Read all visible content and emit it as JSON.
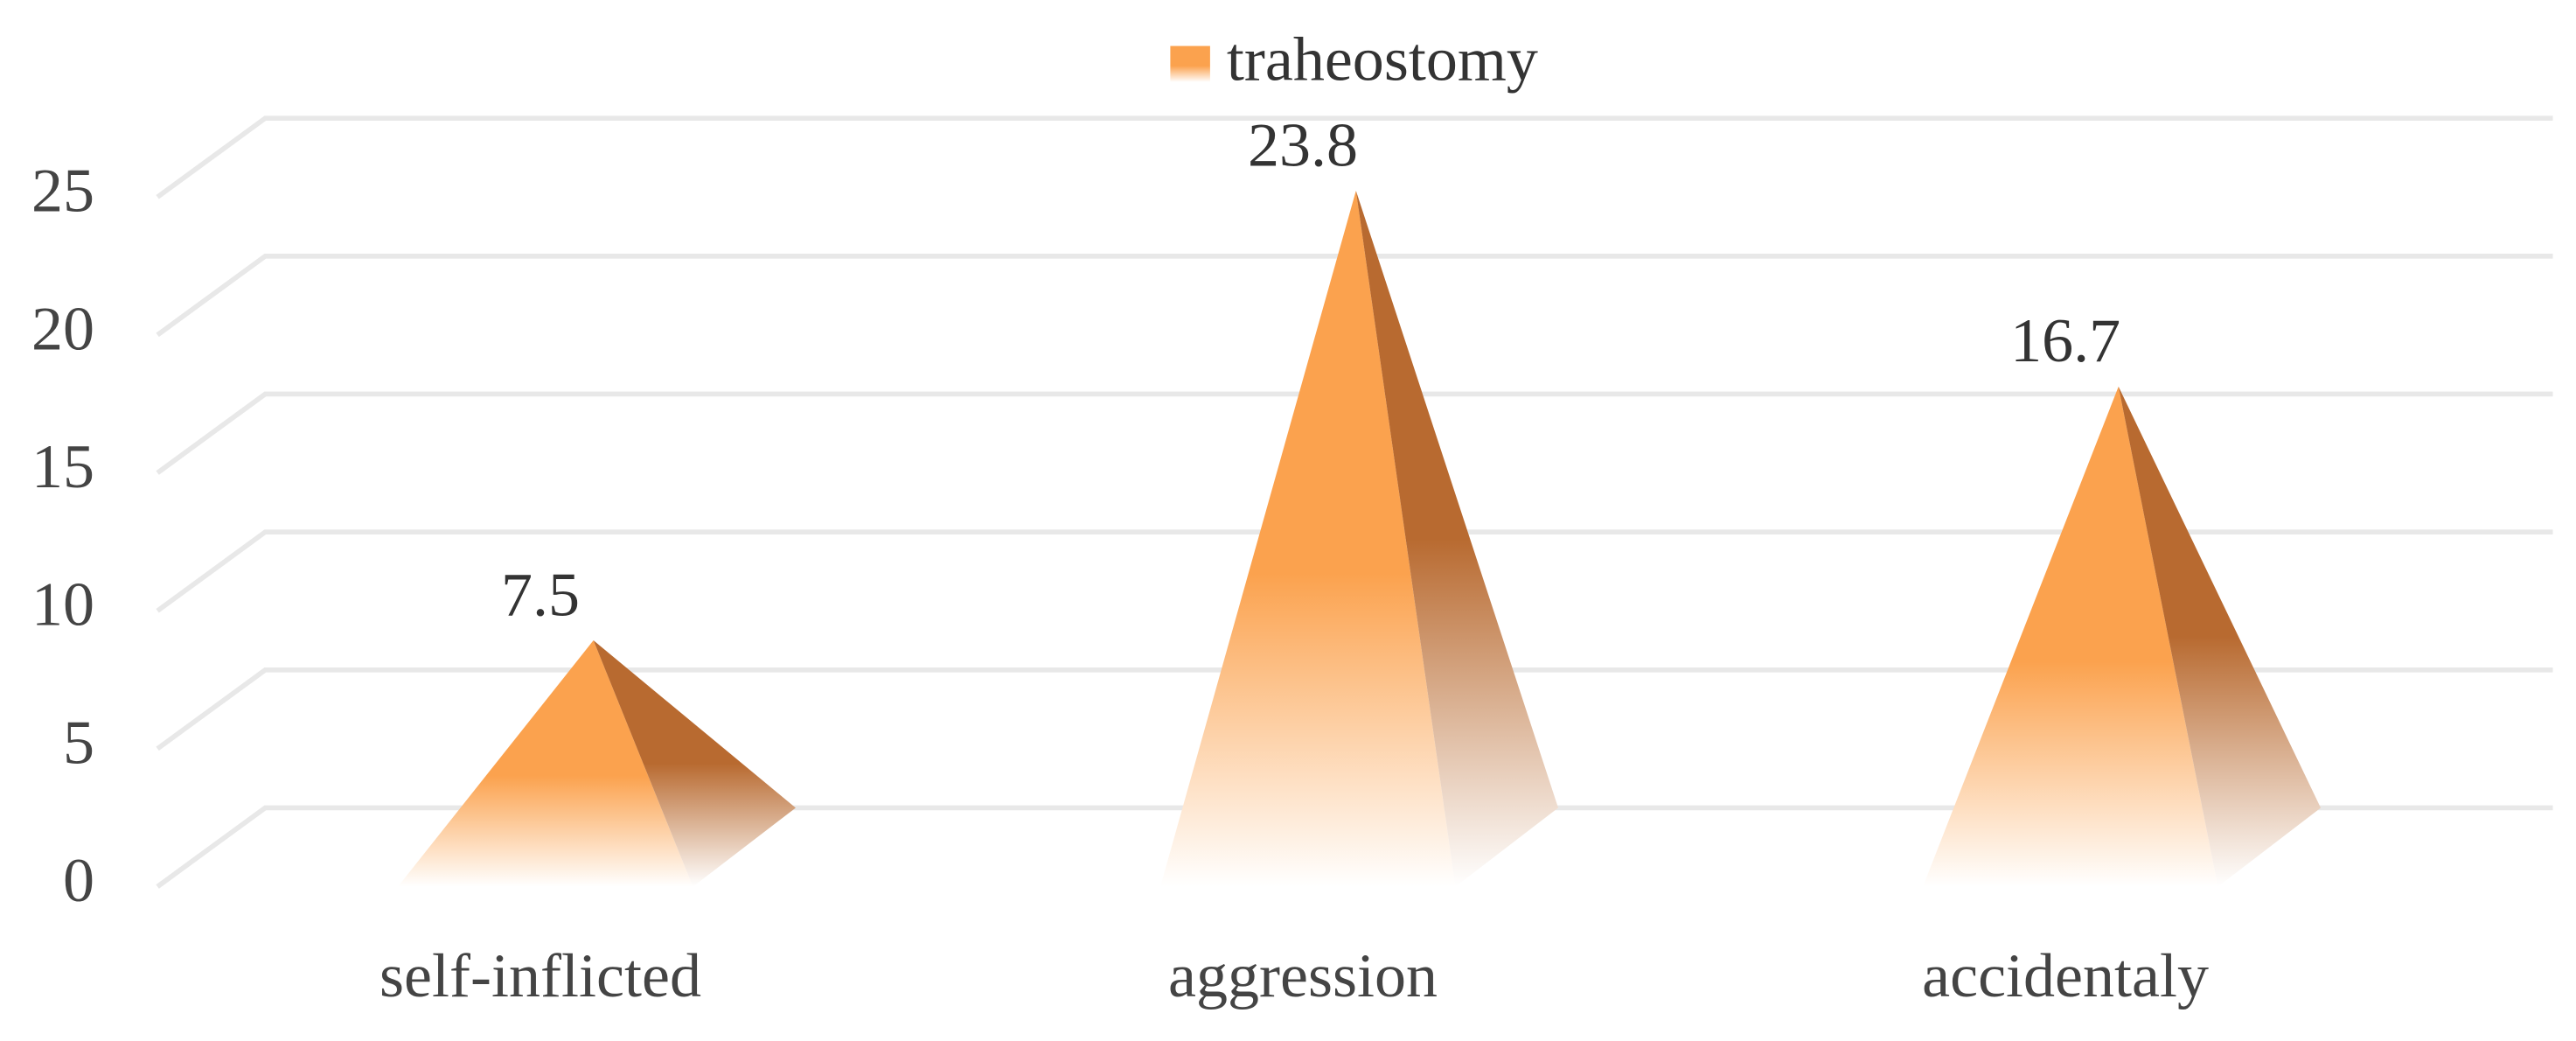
{
  "chart_data": {
    "type": "pyramid",
    "categories": [
      "self-inflicted",
      "aggression",
      "accidentaly"
    ],
    "series": [
      {
        "name": "traheostomy",
        "color": "#fba24e",
        "values": [
          7.5,
          23.8,
          16.7
        ]
      }
    ],
    "ylim": [
      0,
      25
    ],
    "yticks": [
      0,
      5,
      10,
      15,
      20,
      25
    ],
    "grid": true
  }
}
